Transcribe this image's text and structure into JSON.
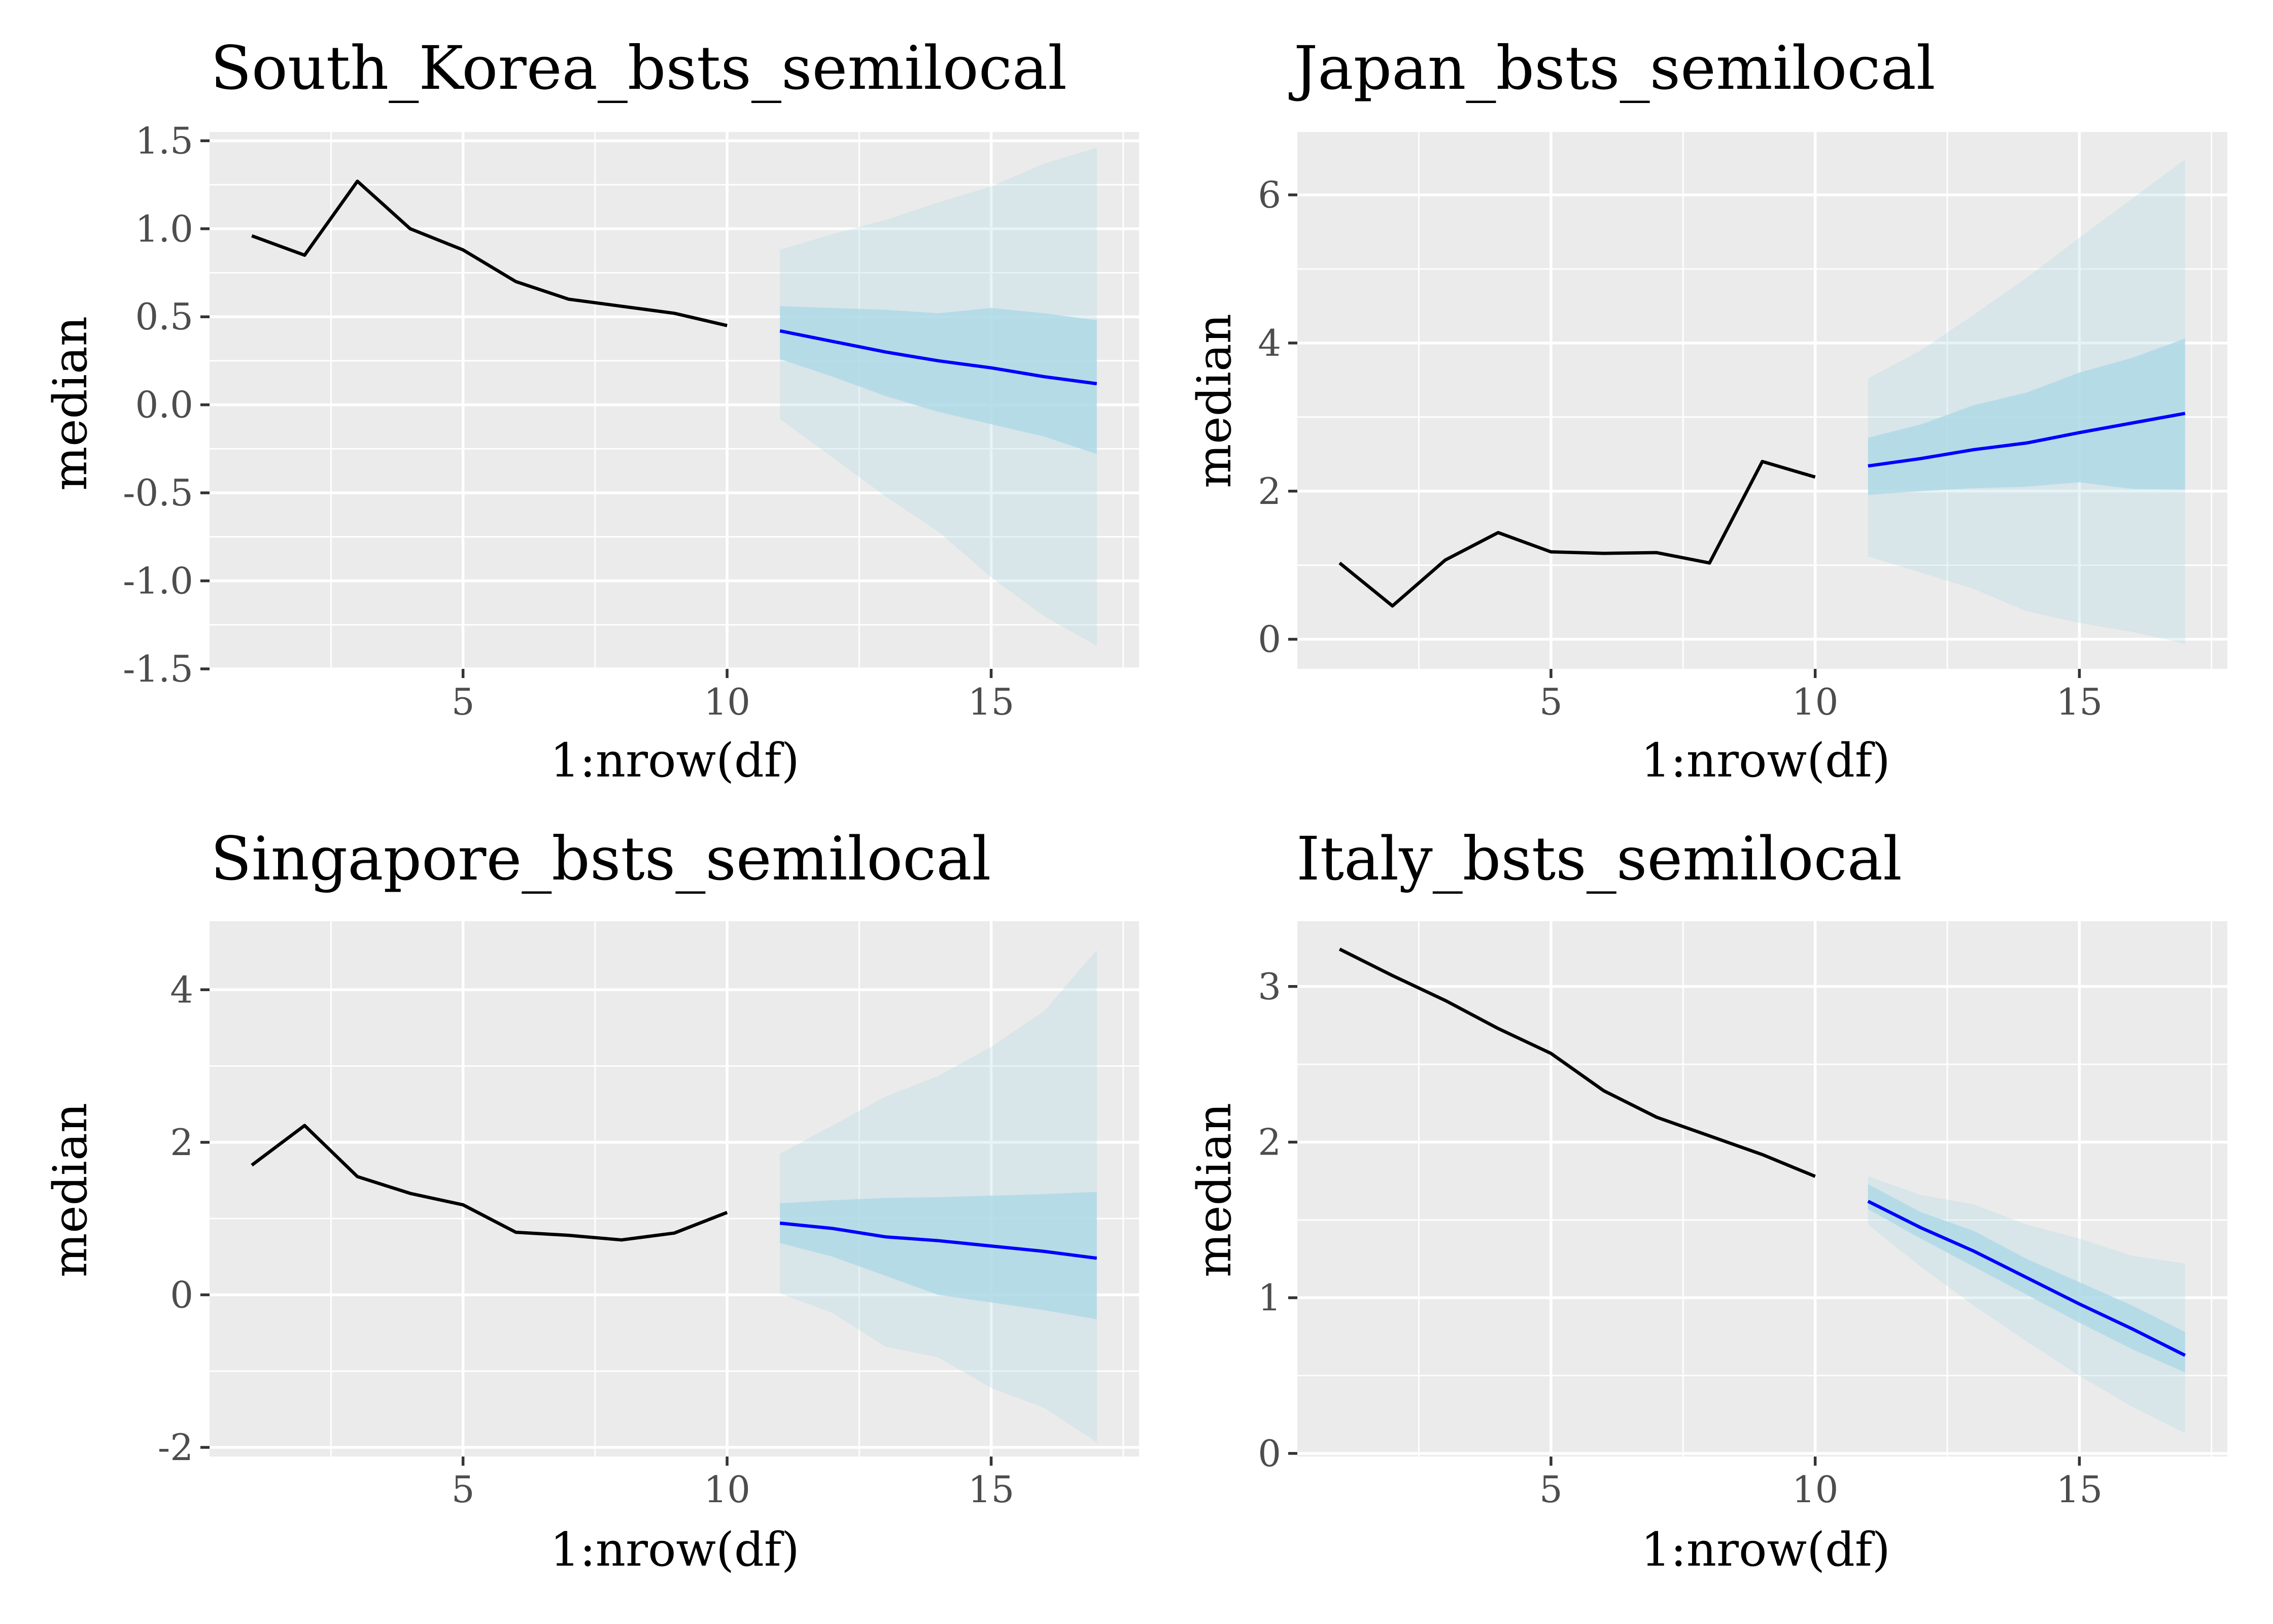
{
  "chart_data": [
    {
      "type": "line",
      "title": "South_Korea_bsts_semilocal",
      "xlabel": "1:nrow(df)",
      "ylabel": "median",
      "xlim": [
        0.2,
        17.8
      ],
      "ylim": [
        -1.5,
        1.55
      ],
      "x_major_ticks": [
        5,
        10,
        15
      ],
      "x_tick_labels": [
        "5",
        "10",
        "15"
      ],
      "y_major_ticks": [
        -1.5,
        -1.0,
        -0.5,
        0.0,
        0.5,
        1.0,
        1.5
      ],
      "y_tick_labels": [
        "-1.5",
        "-1.0",
        "-0.5",
        "0.0",
        "0.5",
        "1.0",
        "1.5"
      ],
      "grid": true,
      "series": [
        {
          "role": "observed",
          "color": "#000000",
          "x": [
            1,
            2,
            3,
            4,
            5,
            6,
            7,
            8,
            9,
            10
          ],
          "values": [
            0.96,
            0.85,
            1.27,
            1.0,
            0.88,
            0.7,
            0.6,
            0.56,
            0.52,
            0.45
          ]
        },
        {
          "role": "forecast",
          "color": "#0000ff",
          "x": [
            11,
            12,
            13,
            14,
            15,
            16,
            17
          ],
          "values": [
            0.42,
            0.36,
            0.3,
            0.25,
            0.21,
            0.16,
            0.12
          ]
        }
      ],
      "bands": [
        {
          "level": "95",
          "color": "#add8e6",
          "x": [
            11,
            12,
            13,
            14,
            15,
            16,
            17
          ],
          "lower": [
            -0.08,
            -0.3,
            -0.52,
            -0.72,
            -0.98,
            -1.2,
            -1.37
          ],
          "upper": [
            0.88,
            0.97,
            1.05,
            1.15,
            1.24,
            1.37,
            1.46
          ]
        },
        {
          "level": "80",
          "color": "#add8e6",
          "x": [
            11,
            12,
            13,
            14,
            15,
            16,
            17
          ],
          "lower": [
            0.26,
            0.16,
            0.05,
            -0.04,
            -0.11,
            -0.18,
            -0.28
          ],
          "upper": [
            0.56,
            0.55,
            0.54,
            0.52,
            0.55,
            0.52,
            0.48
          ]
        }
      ]
    },
    {
      "type": "line",
      "title": "Japan_bsts_semilocal",
      "xlabel": "1:nrow(df)",
      "ylabel": "median",
      "xlim": [
        0.2,
        17.8
      ],
      "ylim": [
        -0.4,
        6.85
      ],
      "x_major_ticks": [
        5,
        10,
        15
      ],
      "x_tick_labels": [
        "5",
        "10",
        "15"
      ],
      "y_major_ticks": [
        0,
        2,
        4,
        6
      ],
      "y_tick_labels": [
        "0",
        "2",
        "4",
        "6"
      ],
      "grid": true,
      "series": [
        {
          "role": "observed",
          "color": "#000000",
          "x": [
            1,
            2,
            3,
            4,
            5,
            6,
            7,
            8,
            9,
            10
          ],
          "values": [
            1.03,
            0.45,
            1.07,
            1.44,
            1.18,
            1.16,
            1.17,
            1.03,
            2.4,
            2.19
          ]
        },
        {
          "role": "forecast",
          "color": "#0000ff",
          "x": [
            11,
            12,
            13,
            14,
            15,
            16,
            17
          ],
          "values": [
            2.34,
            2.44,
            2.56,
            2.65,
            2.79,
            2.92,
            3.05
          ]
        }
      ],
      "bands": [
        {
          "level": "95",
          "color": "#add8e6",
          "x": [
            11,
            12,
            13,
            14,
            15,
            16,
            17
          ],
          "lower": [
            1.12,
            0.9,
            0.68,
            0.38,
            0.22,
            0.1,
            -0.06
          ],
          "upper": [
            3.52,
            3.9,
            4.38,
            4.88,
            5.42,
            5.95,
            6.48
          ]
        },
        {
          "level": "80",
          "color": "#add8e6",
          "x": [
            11,
            12,
            13,
            14,
            15,
            16,
            17
          ],
          "lower": [
            1.95,
            2.0,
            2.04,
            2.06,
            2.12,
            2.03,
            2.02
          ],
          "upper": [
            2.72,
            2.9,
            3.16,
            3.33,
            3.6,
            3.8,
            4.06
          ]
        }
      ]
    },
    {
      "type": "line",
      "title": "Singapore_bsts_semilocal",
      "xlabel": "1:nrow(df)",
      "ylabel": "median",
      "xlim": [
        0.2,
        17.8
      ],
      "ylim": [
        -2.12,
        4.9
      ],
      "x_major_ticks": [
        5,
        10,
        15
      ],
      "x_tick_labels": [
        "5",
        "10",
        "15"
      ],
      "y_major_ticks": [
        -2,
        0,
        2,
        4
      ],
      "y_tick_labels": [
        "-2",
        "0",
        "2",
        "4"
      ],
      "grid": true,
      "series": [
        {
          "role": "observed",
          "color": "#000000",
          "x": [
            1,
            2,
            3,
            4,
            5,
            6,
            7,
            8,
            9,
            10
          ],
          "values": [
            1.7,
            2.22,
            1.55,
            1.33,
            1.18,
            0.82,
            0.78,
            0.72,
            0.81,
            1.08
          ]
        },
        {
          "role": "forecast",
          "color": "#0000ff",
          "x": [
            11,
            12,
            13,
            14,
            15,
            16,
            17
          ],
          "values": [
            0.94,
            0.87,
            0.76,
            0.71,
            0.64,
            0.57,
            0.48
          ]
        }
      ],
      "bands": [
        {
          "level": "95",
          "color": "#add8e6",
          "x": [
            11,
            12,
            13,
            14,
            15,
            16,
            17
          ],
          "lower": [
            0.02,
            -0.24,
            -0.68,
            -0.82,
            -1.22,
            -1.48,
            -1.93
          ],
          "upper": [
            1.85,
            2.22,
            2.6,
            2.87,
            3.25,
            3.72,
            4.52
          ]
        },
        {
          "level": "80",
          "color": "#add8e6",
          "x": [
            11,
            12,
            13,
            14,
            15,
            16,
            17
          ],
          "lower": [
            0.68,
            0.5,
            0.25,
            0.0,
            -0.1,
            -0.2,
            -0.32
          ],
          "upper": [
            1.2,
            1.24,
            1.27,
            1.28,
            1.3,
            1.32,
            1.35
          ]
        }
      ]
    },
    {
      "type": "line",
      "title": "Italy_bsts_semilocal",
      "xlabel": "1:nrow(df)",
      "ylabel": "median",
      "xlim": [
        0.2,
        17.8
      ],
      "ylim": [
        -0.02,
        3.42
      ],
      "x_major_ticks": [
        5,
        10,
        15
      ],
      "x_tick_labels": [
        "5",
        "10",
        "15"
      ],
      "y_major_ticks": [
        0,
        1,
        2,
        3
      ],
      "y_tick_labels": [
        "0",
        "1",
        "2",
        "3"
      ],
      "grid": true,
      "series": [
        {
          "role": "observed",
          "color": "#000000",
          "x": [
            1,
            2,
            3,
            4,
            5,
            6,
            7,
            8,
            9,
            10
          ],
          "values": [
            3.24,
            3.07,
            2.91,
            2.73,
            2.57,
            2.33,
            2.16,
            2.04,
            1.92,
            1.78
          ]
        },
        {
          "role": "forecast",
          "color": "#0000ff",
          "x": [
            11,
            12,
            13,
            14,
            15,
            16,
            17
          ],
          "values": [
            1.62,
            1.45,
            1.3,
            1.13,
            0.96,
            0.8,
            0.63
          ]
        }
      ],
      "bands": [
        {
          "level": "95",
          "color": "#add8e6",
          "x": [
            11,
            12,
            13,
            14,
            15,
            16,
            17
          ],
          "lower": [
            1.47,
            1.2,
            0.95,
            0.72,
            0.5,
            0.3,
            0.13
          ],
          "upper": [
            1.78,
            1.66,
            1.6,
            1.47,
            1.38,
            1.27,
            1.22
          ]
        },
        {
          "level": "80",
          "color": "#add8e6",
          "x": [
            11,
            12,
            13,
            14,
            15,
            16,
            17
          ],
          "lower": [
            1.57,
            1.38,
            1.2,
            1.02,
            0.84,
            0.67,
            0.52
          ],
          "upper": [
            1.73,
            1.55,
            1.43,
            1.25,
            1.1,
            0.95,
            0.78
          ]
        }
      ]
    }
  ]
}
